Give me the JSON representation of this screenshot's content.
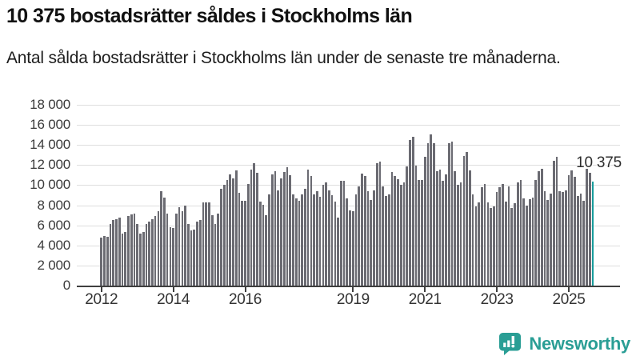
{
  "chart_data": {
    "type": "bar",
    "title": "10 375 bostadsrätter såldes i Stockholms län",
    "subtitle": "Antal sålda bostadsrätter i Stockholms län under de senaste tre månaderna.",
    "frequency": "monthly",
    "x_start": "2012-01",
    "x_end": "2025-09",
    "ylim": [
      0,
      18000
    ],
    "grid": "horizontal",
    "bar_color": "#6b6b72",
    "highlight_color": "#189c9c",
    "highlight_index": 164,
    "highlight_value": 10375,
    "highlight_label": "10 375",
    "y_ticks": [
      {
        "value": 0,
        "label": "0"
      },
      {
        "value": 2000,
        "label": "2 000"
      },
      {
        "value": 4000,
        "label": "4 000"
      },
      {
        "value": 6000,
        "label": "6 000"
      },
      {
        "value": 8000,
        "label": "8 000"
      },
      {
        "value": 10000,
        "label": "10 000"
      },
      {
        "value": 12000,
        "label": "12 000"
      },
      {
        "value": 14000,
        "label": "14 000"
      },
      {
        "value": 16000,
        "label": "16 000"
      },
      {
        "value": 18000,
        "label": "18 000"
      }
    ],
    "x_ticks": [
      {
        "year": 2012,
        "label": "2012"
      },
      {
        "year": 2014,
        "label": "2014"
      },
      {
        "year": 2016,
        "label": "2016"
      },
      {
        "year": 2019,
        "label": "2019"
      },
      {
        "year": 2021,
        "label": "2021"
      },
      {
        "year": 2023,
        "label": "2023"
      },
      {
        "year": 2025,
        "label": "2025"
      }
    ],
    "values": [
      4750,
      4900,
      4850,
      6100,
      6500,
      6600,
      6800,
      5200,
      5350,
      6900,
      7050,
      7200,
      6100,
      5150,
      5350,
      6100,
      6350,
      6650,
      6900,
      7400,
      9400,
      8750,
      7150,
      5800,
      5750,
      7150,
      7800,
      7400,
      8000,
      6100,
      5500,
      5600,
      6350,
      6500,
      8250,
      8250,
      8250,
      7000,
      6150,
      7150,
      9600,
      10000,
      10500,
      11050,
      10700,
      11500,
      9250,
      8450,
      8450,
      10150,
      11550,
      12150,
      11200,
      8350,
      8050,
      7000,
      9100,
      11100,
      11350,
      9500,
      10700,
      11300,
      11800,
      11000,
      9100,
      8700,
      8450,
      9100,
      9650,
      11550,
      10950,
      9100,
      9400,
      8850,
      10050,
      10300,
      9500,
      9000,
      8400,
      6750,
      10400,
      10400,
      8650,
      7450,
      7400,
      9100,
      9850,
      11150,
      10950,
      9400,
      8500,
      9500,
      12150,
      12350,
      9850,
      8900,
      9100,
      11300,
      10900,
      10600,
      10000,
      10250,
      11900,
      14500,
      14850,
      11950,
      10550,
      10500,
      12850,
      14150,
      15050,
      14150,
      11400,
      11550,
      10400,
      11050,
      14150,
      14300,
      11350,
      10050,
      10300,
      12900,
      13300,
      11450,
      9100,
      7850,
      8270,
      9800,
      10100,
      8270,
      7730,
      7870,
      9330,
      9810,
      10130,
      8400,
      9870,
      7730,
      8210,
      10270,
      10480,
      8670,
      7950,
      8610,
      8800,
      10530,
      11410,
      11600,
      9410,
      8530,
      9150,
      12400,
      12800,
      9410,
      9330,
      9470,
      11010,
      11490,
      10830,
      8930,
      9150,
      8480,
      11600,
      11200,
      10375
    ]
  },
  "footer": {
    "brand": "Newsworthy",
    "brand_color": "#2a9e95"
  }
}
